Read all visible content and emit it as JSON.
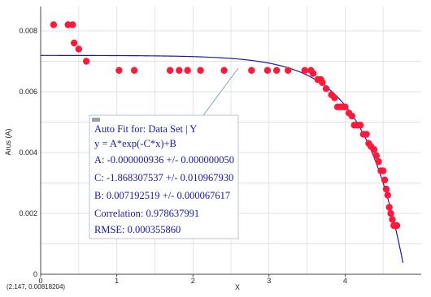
{
  "chart_data": {
    "type": "scatter",
    "xlabel": "X",
    "ylabel": "Arus (A)",
    "xlim": [
      0,
      5.0
    ],
    "ylim": [
      0,
      0.0088
    ],
    "x_ticks": [
      "0",
      "1",
      "2",
      "3",
      "4"
    ],
    "y_ticks": [
      "0",
      "0.002",
      "0.004",
      "0.006",
      "0.008"
    ],
    "grid": true,
    "coord_readout": "(2.147, 0.00818204)",
    "colors": {
      "points": "#ff1a3c",
      "fit_curve": "#1a1aa6",
      "grid": "#d9d9d9"
    },
    "series": [
      {
        "type": "scatter",
        "x": [
          0.17,
          0.36,
          0.42,
          0.44,
          0.5,
          0.6,
          1.03,
          1.23,
          1.7,
          1.82,
          1.93,
          2.1,
          2.41,
          2.77,
          2.98,
          3.1,
          3.25,
          3.47,
          3.55,
          3.58,
          3.64,
          3.68,
          3.7,
          3.75,
          3.82,
          3.86,
          3.9,
          3.94,
          3.98,
          4.0,
          4.05,
          4.09,
          4.12,
          4.16,
          4.2,
          4.24,
          4.28,
          4.31,
          4.34,
          4.38,
          4.41,
          4.44,
          4.47,
          4.5,
          4.52,
          4.54,
          4.56,
          4.58,
          4.6,
          4.62,
          4.64,
          4.66,
          4.68
        ],
        "y": [
          0.0082,
          0.0082,
          0.0082,
          0.0076,
          0.0074,
          0.007,
          0.0067,
          0.0067,
          0.0067,
          0.0067,
          0.0067,
          0.0067,
          0.0067,
          0.0067,
          0.0067,
          0.0067,
          0.0067,
          0.0067,
          0.0067,
          0.0066,
          0.0064,
          0.0064,
          0.0063,
          0.0061,
          0.0059,
          0.0058,
          0.0055,
          0.0055,
          0.0055,
          0.0055,
          0.0053,
          0.0052,
          0.0049,
          0.0049,
          0.0049,
          0.0046,
          0.0046,
          0.0043,
          0.0042,
          0.0041,
          0.0039,
          0.0037,
          0.0034,
          0.0034,
          0.0031,
          0.0028,
          0.0026,
          0.0022,
          0.002,
          0.0018,
          0.0016,
          0.0016,
          0.0016
        ]
      },
      {
        "type": "line",
        "model": "y = A*exp(-C*x)+B",
        "A": -9.36e-07,
        "C": -1.868307537,
        "B": 0.007192519,
        "x_range": [
          0.0,
          4.76
        ]
      }
    ],
    "annotation": {
      "lines": [
        "Auto Fit for: Data Set | Y",
        "y = A*exp(-C*x)+B",
        "A: -0.000000936 +/- 0.000000050",
        "C: -1.868307537 +/- 0.010967930",
        "B: 0.007192519 +/- 0.000067617",
        "Correlation: 0.978637991",
        "RMSE: 0.000355860"
      ]
    }
  }
}
